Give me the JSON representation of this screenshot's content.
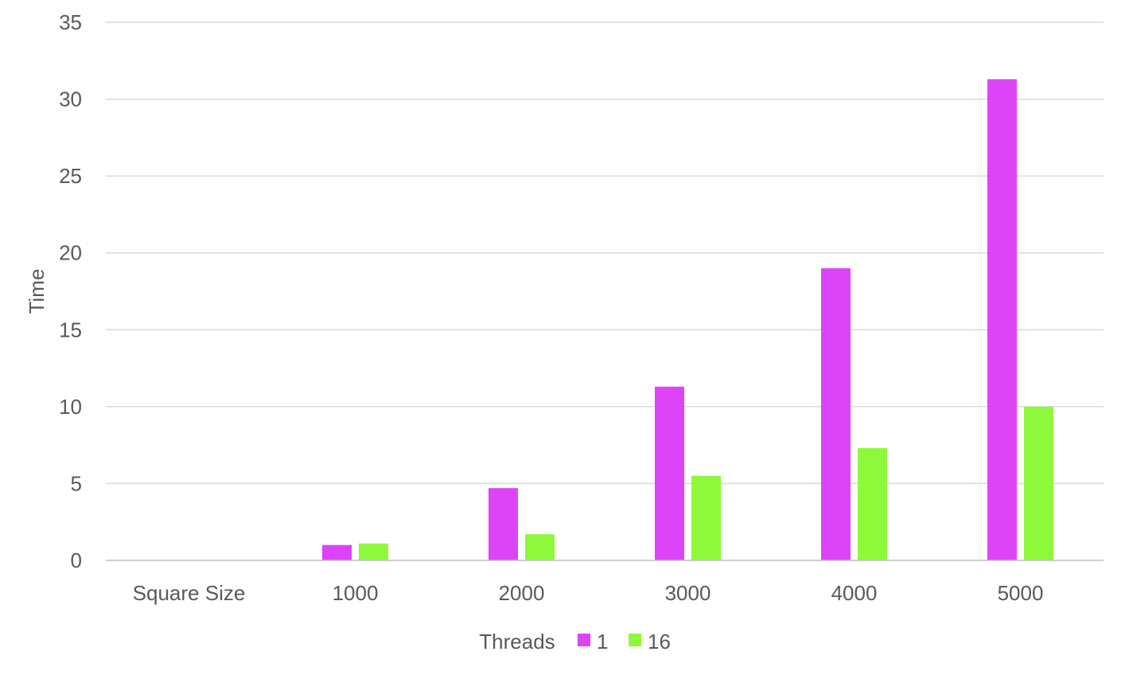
{
  "chart_data": {
    "type": "bar",
    "categories": [
      "Square Size",
      "1000",
      "2000",
      "3000",
      "4000",
      "5000"
    ],
    "series": [
      {
        "name": "1",
        "color": "#dd44f8",
        "values": [
          null,
          1.0,
          4.7,
          11.3,
          19.0,
          31.3
        ]
      },
      {
        "name": "16",
        "color": "#8ef93b",
        "values": [
          null,
          1.1,
          1.7,
          5.5,
          7.3,
          10.0
        ]
      }
    ],
    "title": "",
    "xlabel": "",
    "ylabel": "Time",
    "ylim": [
      0,
      35
    ],
    "yticks": [
      0,
      5,
      10,
      15,
      20,
      25,
      30,
      35
    ],
    "ytick_labels": [
      "0",
      "5",
      "10",
      "15",
      "20",
      "25",
      "30",
      "35"
    ],
    "grid": true,
    "legend": {
      "title": "Threads",
      "placement": "bottom"
    }
  }
}
